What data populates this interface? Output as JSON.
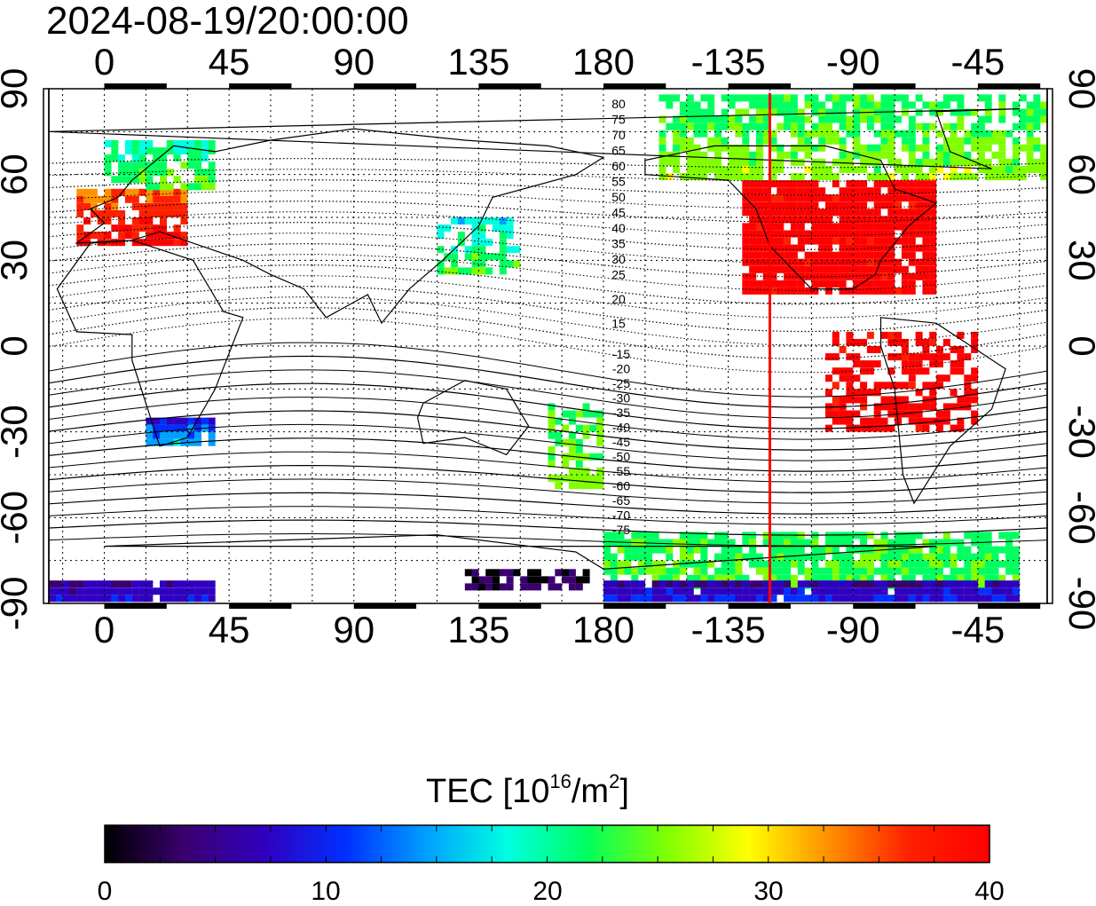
{
  "title": "2024-08-19/20:00:00",
  "map": {
    "lon_ticks_top": [
      "0",
      "45",
      "90",
      "135",
      "180",
      "-135",
      "-90",
      "-45"
    ],
    "lon_ticks_bottom": [
      "0",
      "45",
      "90",
      "135",
      "180",
      "-135",
      "-90",
      "-45"
    ],
    "lat_ticks_left": [
      "90",
      "60",
      "30",
      "0",
      "-30",
      "-60",
      "-90"
    ],
    "lat_ticks_right": [
      "90",
      "60",
      "30",
      "0",
      "-30",
      "-60",
      "-90"
    ],
    "contour_labels_north": [
      "80",
      "75",
      "70",
      "65",
      "60",
      "55",
      "50",
      "45",
      "40",
      "35",
      "30",
      "25",
      "20",
      "15"
    ],
    "contour_labels_south": [
      "-15",
      "-20",
      "-25",
      "-30",
      "-35",
      "-40",
      "-45",
      "-50",
      "-55",
      "-60",
      "-65",
      "-70",
      "-75"
    ],
    "marker_line_color": "#ff0000",
    "marker_lon": -120
  },
  "colorbar": {
    "title_main": "TEC  [10",
    "title_exp": "16",
    "title_unit": "/m",
    "title_exp2": "2",
    "title_end": "]",
    "ticks": [
      "0",
      "10",
      "20",
      "30",
      "40"
    ],
    "range": [
      0,
      40
    ],
    "colors": [
      "#000000",
      "#3a0070",
      "#3000c0",
      "#0030ff",
      "#00a0ff",
      "#00ffe0",
      "#00ff60",
      "#80ff00",
      "#ffff00",
      "#ff9000",
      "#ff2000",
      "#ff0000"
    ]
  }
}
